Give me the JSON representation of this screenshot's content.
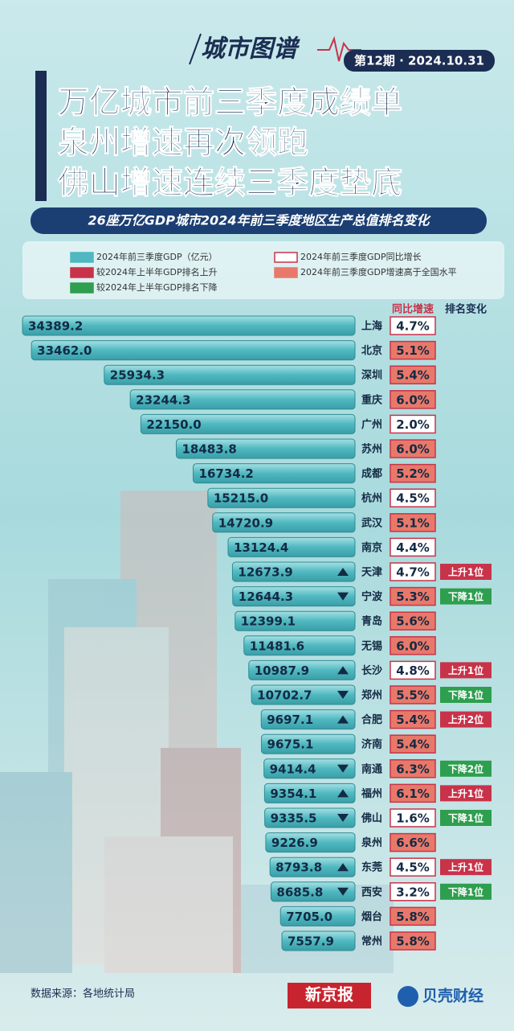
{
  "header": {
    "brand": "城市图谱",
    "issue": "第12期 · 2024.10.31",
    "title_lines": [
      "万亿城市前三季度成绩单",
      "泉州增速再次领跑",
      "佛山增速连续三季度垫底"
    ]
  },
  "chart_data": {
    "type": "bar",
    "orientation": "horizontal",
    "title": "26座万亿GDP城市2024年前三季度地区生产总值排名变化",
    "legend": [
      {
        "label": "2024年前三季度GDP（亿元）",
        "color": "#4fb8c0",
        "border": "#4fb8c0"
      },
      {
        "label": "2024年前三季度GDP同比增长",
        "color": "#ffffff",
        "border": "#c8334a"
      },
      {
        "label": "较2024年上半年GDP排名上升",
        "color": "#c8334a",
        "border": "#c8334a"
      },
      {
        "label": "2024年前三季度GDP增速高于全国水平",
        "color": "#e8796a",
        "border": "#e8796a"
      },
      {
        "label": "较2024年上半年GDP排名下降",
        "color": "#2e9e4f",
        "border": "#2e9e4f"
      }
    ],
    "categories": [
      "上海",
      "北京",
      "深圳",
      "重庆",
      "广州",
      "苏州",
      "成都",
      "杭州",
      "武汉",
      "南京",
      "天津",
      "宁波",
      "青岛",
      "无锡",
      "长沙",
      "郑州",
      "合肥",
      "济南",
      "南通",
      "福州",
      "佛山",
      "泉州",
      "东莞",
      "西安",
      "烟台",
      "常州"
    ],
    "series": [
      {
        "name": "2024年前三季度GDP（亿元）",
        "color": "#4fb8c0",
        "values": [
          34389.2,
          33462.0,
          25934.3,
          23244.3,
          22150.0,
          18483.8,
          16734.2,
          15215.0,
          14720.9,
          13124.4,
          12673.9,
          12644.3,
          12399.1,
          11481.6,
          10987.9,
          10702.7,
          9697.1,
          9675.1,
          9414.4,
          9354.1,
          9335.5,
          9226.9,
          8793.8,
          8685.8,
          7705.0,
          7557.9
        ],
        "value_labels": [
          "34389.2",
          "33462.0",
          "25934.3",
          "23244.3",
          "22150.0",
          "18483.8",
          "16734.2",
          "15215.0",
          "14720.9",
          "13124.4",
          "12673.9",
          "12644.3",
          "12399.1",
          "11481.6",
          "10987.9",
          "10702.7",
          "9697.1",
          "9675.1",
          "9414.4",
          "9354.1",
          "9335.5",
          "9226.9",
          "8793.8",
          "8685.8",
          "7705.0",
          "7557.9"
        ]
      }
    ],
    "growth": {
      "title": "同比增速",
      "values": [
        4.7,
        5.1,
        5.4,
        6.0,
        2.0,
        6.0,
        5.2,
        4.5,
        5.1,
        4.4,
        4.7,
        5.3,
        5.6,
        6.0,
        4.8,
        5.5,
        5.4,
        5.4,
        6.3,
        6.1,
        1.6,
        6.6,
        4.5,
        3.2,
        5.8,
        5.8
      ],
      "value_labels": [
        "4.7%",
        "5.1%",
        "5.4%",
        "6.0%",
        "2.0%",
        "6.0%",
        "5.2%",
        "4.5%",
        "5.1%",
        "4.4%",
        "4.7%",
        "5.3%",
        "5.6%",
        "6.0%",
        "4.8%",
        "5.5%",
        "5.4%",
        "5.4%",
        "6.3%",
        "6.1%",
        "1.6%",
        "6.6%",
        "4.5%",
        "3.2%",
        "5.8%",
        "5.8%"
      ],
      "colors": [
        "#ffffff",
        "#e8796a",
        "#e8796a",
        "#e8796a",
        "#ffffff",
        "#e8796a",
        "#e8796a",
        "#ffffff",
        "#e8796a",
        "#ffffff",
        "#ffffff",
        "#e8796a",
        "#e8796a",
        "#e8796a",
        "#ffffff",
        "#e8796a",
        "#e8796a",
        "#e8796a",
        "#e8796a",
        "#e8796a",
        "#ffffff",
        "#e8796a",
        "#ffffff",
        "#ffffff",
        "#e8796a",
        "#e8796a"
      ]
    },
    "rank_change": {
      "title": "排名变化",
      "up_color": "#c8334a",
      "down_color": "#2e9e4f",
      "values": [
        null,
        null,
        null,
        null,
        null,
        null,
        null,
        null,
        null,
        null,
        {
          "value": 1,
          "label": "上升1位"
        },
        {
          "value": -1,
          "label": "下降1位"
        },
        null,
        null,
        {
          "value": 1,
          "label": "上升1位"
        },
        {
          "value": -1,
          "label": "下降1位"
        },
        {
          "value": 2,
          "label": "上升2位"
        },
        null,
        {
          "value": -2,
          "label": "下降2位"
        },
        {
          "value": 1,
          "label": "上升1位"
        },
        {
          "value": -1,
          "label": "下降1位"
        },
        null,
        {
          "value": 1,
          "label": "上升1位"
        },
        {
          "value": -1,
          "label": "下降1位"
        },
        null,
        null
      ]
    }
  },
  "footer": {
    "source": "数据来源：各地统计局",
    "logos": [
      "新京报",
      "贝壳财经"
    ]
  }
}
